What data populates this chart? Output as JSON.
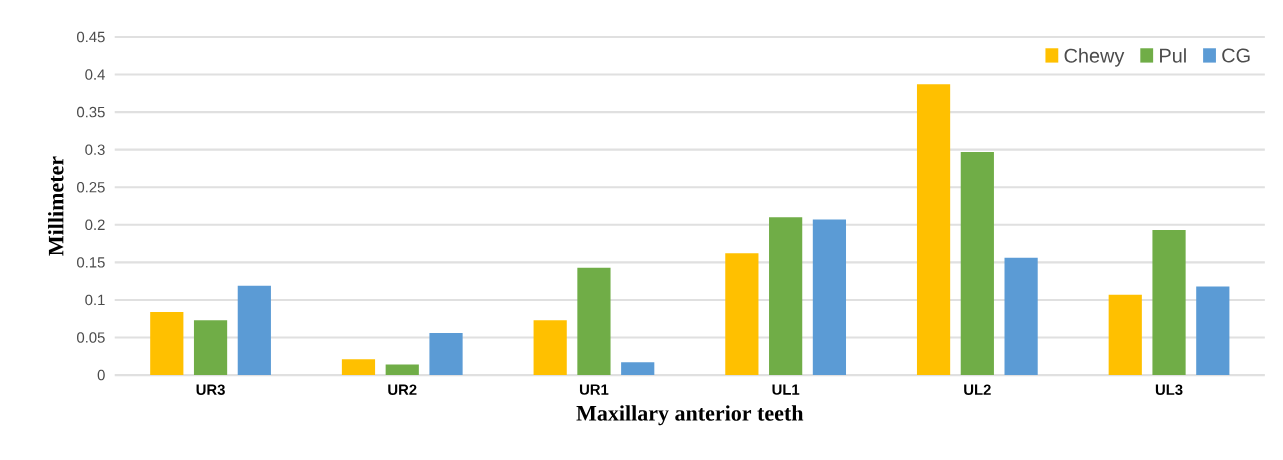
{
  "chart_data": {
    "type": "bar",
    "xlabel": "Maxillary anterior teeth",
    "ylabel": "Millimeter",
    "categories": [
      "UR3",
      "UR2",
      "UR1",
      "UL1",
      "UL2",
      "UL3"
    ],
    "series": [
      {
        "name": "Chewy",
        "color": "#ffc000",
        "values": [
          0.084,
          0.021,
          0.073,
          0.162,
          0.387,
          0.107
        ]
      },
      {
        "name": "Pul",
        "color": "#70ad47",
        "values": [
          0.073,
          0.014,
          0.143,
          0.21,
          0.297,
          0.193
        ]
      },
      {
        "name": "CG",
        "color": "#5b9bd5",
        "values": [
          0.119,
          0.056,
          0.017,
          0.207,
          0.156,
          0.118
        ]
      }
    ],
    "ylim": [
      0,
      0.45
    ],
    "yticks": [
      0,
      0.05,
      0.1,
      0.15,
      0.2,
      0.25,
      0.3,
      0.35,
      0.4,
      0.45
    ],
    "grid": "y",
    "legend": "top right"
  }
}
